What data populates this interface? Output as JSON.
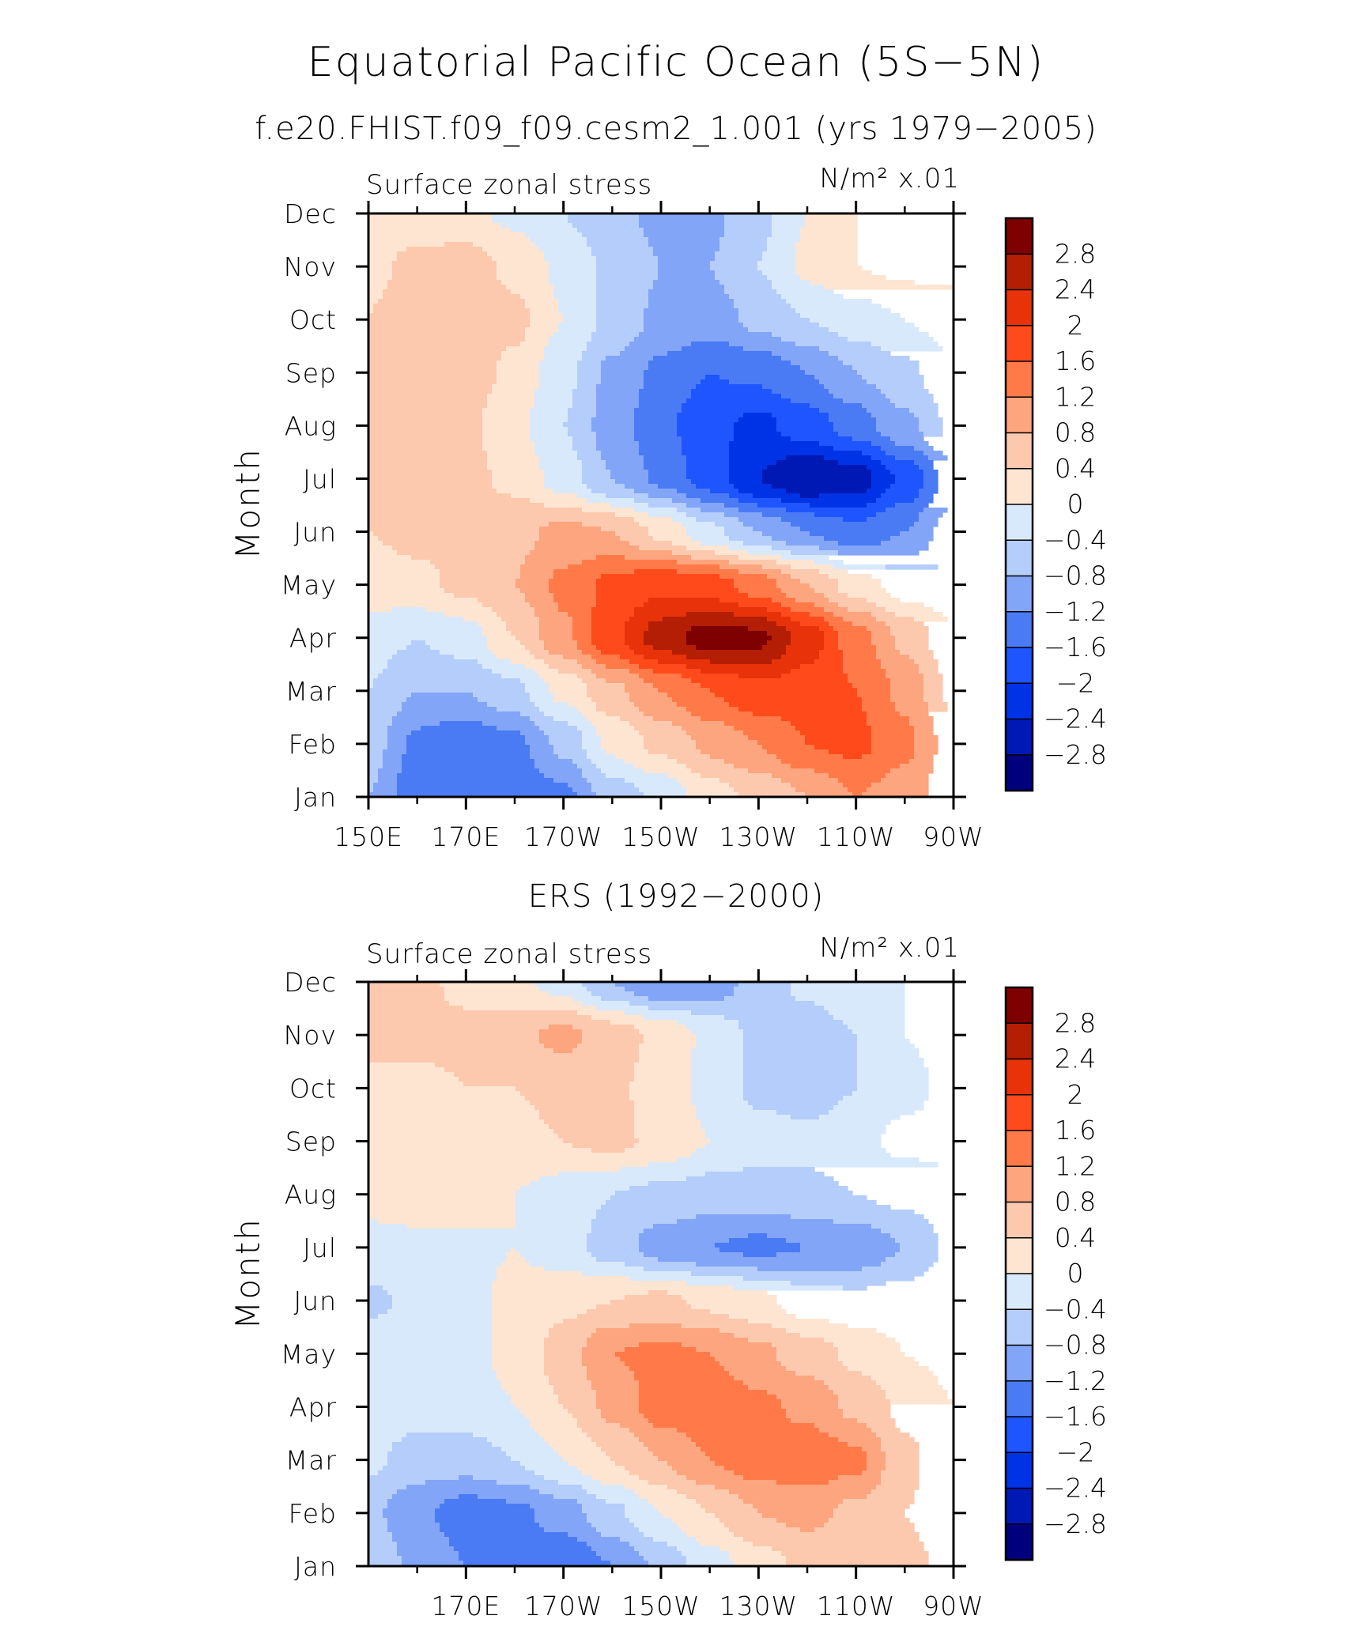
{
  "figure": {
    "title": "Equatorial Pacific Ocean (5S−5N)",
    "colorbar_levels": [
      -2.8,
      -2.4,
      -2,
      -1.6,
      -1.2,
      -0.8,
      -0.4,
      0,
      0.4,
      0.8,
      1.2,
      1.6,
      2,
      2.4,
      2.8
    ],
    "colorbar_labels": [
      "2.8",
      "2.4",
      "2",
      "1.6",
      "1.2",
      "0.8",
      "0.4",
      "0",
      "−0.4",
      "−0.8",
      "−1.2",
      "−1.6",
      "−2",
      "−2.4",
      "−2.8"
    ],
    "colors": [
      "#00007f",
      "#0019b4",
      "#0033e6",
      "#1e55ff",
      "#4a7bf5",
      "#82a5f7",
      "#b4cdfa",
      "#d8e9fc",
      "#fde5d2",
      "#fcc9ae",
      "#fca57e",
      "#ff7a48",
      "#ff4a1b",
      "#e8320a",
      "#b41e05",
      "#7f0000"
    ]
  },
  "chart_data": [
    {
      "type": "heatmap",
      "title": "f.e20.FHIST.f09_f09.cesm2_1.001 (yrs 1979−2005)",
      "left_label": "Surface zonal stress",
      "right_label": "N/m² x.01",
      "ylabel": "Month",
      "xlabel": "",
      "x_tick_labels": [
        "150E",
        "170E",
        "170W",
        "150W",
        "130W",
        "110W",
        "90W"
      ],
      "y_tick_labels": [
        "Jan",
        "Feb",
        "Mar",
        "Apr",
        "May",
        "Jun",
        "Jul",
        "Aug",
        "Sep",
        "Oct",
        "Nov",
        "Dec"
      ],
      "x": [
        150,
        160,
        170,
        180,
        190,
        200,
        210,
        220,
        230,
        240,
        250,
        260,
        270
      ],
      "x_units": "degrees east longitude",
      "y": [
        1,
        2,
        3,
        4,
        5,
        6,
        7,
        8,
        9,
        10,
        11,
        12
      ],
      "values": [
        [
          -0.8,
          -1.5,
          -1.6,
          -1.5,
          -1.3,
          -0.6,
          -0.3,
          0.2,
          0.5,
          0.8,
          1.2,
          1.0,
          0.5
        ],
        [
          -0.6,
          -1.3,
          -1.5,
          -1.3,
          -0.7,
          0.1,
          0.5,
          0.9,
          1.2,
          1.6,
          1.7,
          1.3,
          0.6
        ],
        [
          -0.4,
          -0.8,
          -0.8,
          -0.5,
          0.1,
          0.7,
          1.2,
          1.6,
          1.9,
          1.8,
          1.6,
          1.1,
          0.3
        ],
        [
          -0.2,
          -0.4,
          -0.2,
          0.4,
          1.1,
          1.9,
          2.6,
          3.0,
          2.9,
          2.2,
          1.4,
          0.7,
          0.1
        ],
        [
          0.2,
          0.3,
          0.5,
          0.8,
          1.3,
          1.7,
          1.9,
          1.8,
          1.4,
          0.8,
          0.2,
          -0.2,
          -0.3
        ],
        [
          0.4,
          0.5,
          0.6,
          0.7,
          0.9,
          0.8,
          0.3,
          -0.3,
          -0.8,
          -1.2,
          -1.5,
          -1.2,
          -0.6
        ],
        [
          0.5,
          0.6,
          0.5,
          0.3,
          -0.2,
          -0.8,
          -1.3,
          -1.8,
          -2.4,
          -2.8,
          -2.6,
          -1.9,
          -1.0
        ],
        [
          0.5,
          0.6,
          0.5,
          0.1,
          -0.4,
          -1.0,
          -1.5,
          -1.9,
          -2.1,
          -1.8,
          -1.4,
          -0.9,
          -0.3
        ],
        [
          0.5,
          0.7,
          0.6,
          0.3,
          -0.3,
          -0.9,
          -1.3,
          -1.6,
          -1.5,
          -1.2,
          -0.8,
          -0.5,
          -0.1
        ],
        [
          0.4,
          0.7,
          0.8,
          0.5,
          0.0,
          -0.5,
          -0.9,
          -1.0,
          -0.7,
          -0.4,
          -0.2,
          0.0,
          0.2
        ],
        [
          0.3,
          0.5,
          0.6,
          0.3,
          -0.1,
          -0.5,
          -0.8,
          -0.8,
          -0.4,
          0.1,
          0.4,
          0.5,
          0.5
        ],
        [
          0.2,
          0.2,
          0.1,
          -0.1,
          -0.4,
          -0.7,
          -0.9,
          -0.9,
          -0.5,
          0.0,
          0.4,
          0.5,
          0.5
        ]
      ]
    },
    {
      "type": "heatmap",
      "title": "ERS (1992−2000)",
      "left_label": "Surface zonal stress",
      "right_label": "N/m² x.01",
      "ylabel": "Month",
      "xlabel": "",
      "x_tick_labels": [
        "170E",
        "170W",
        "150W",
        "130W",
        "110W",
        "90W"
      ],
      "y_tick_labels": [
        "Jan",
        "Feb",
        "Mar",
        "Apr",
        "May",
        "Jun",
        "Jul",
        "Aug",
        "Sep",
        "Oct",
        "Nov",
        "Dec"
      ],
      "x": [
        150,
        160,
        170,
        180,
        190,
        200,
        210,
        220,
        230,
        240,
        250,
        260,
        270
      ],
      "x_units": "degrees east longitude",
      "y": [
        1,
        2,
        3,
        4,
        5,
        6,
        7,
        8,
        9,
        10,
        11,
        12
      ],
      "values": [
        [
          -0.5,
          -0.9,
          -1.2,
          -1.5,
          -1.6,
          -1.2,
          -0.7,
          -0.2,
          0.2,
          0.5,
          0.7,
          0.5,
          0.3
        ],
        [
          -0.7,
          -1.1,
          -1.4,
          -1.3,
          -1.0,
          -0.5,
          0.0,
          0.4,
          0.8,
          0.9,
          0.7,
          0.4,
          0.2
        ],
        [
          -0.3,
          -0.6,
          -0.6,
          -0.4,
          0.0,
          0.4,
          0.8,
          1.2,
          1.4,
          1.5,
          1.3,
          0.5,
          0.1
        ],
        [
          -0.1,
          -0.2,
          -0.2,
          0.0,
          0.4,
          0.9,
          1.4,
          1.5,
          1.3,
          1.1,
          0.7,
          0.3,
          0.0
        ],
        [
          -0.1,
          0.0,
          -0.1,
          0.1,
          0.6,
          1.2,
          1.3,
          1.2,
          0.9,
          0.6,
          0.3,
          0.0,
          -0.1
        ],
        [
          -0.5,
          -0.3,
          -0.1,
          0.1,
          0.3,
          0.4,
          0.5,
          0.3,
          0.1,
          -0.2,
          -0.3,
          -0.2,
          -0.1
        ],
        [
          -0.1,
          -0.1,
          -0.1,
          0.0,
          -0.2,
          -0.6,
          -1.0,
          -1.2,
          -1.3,
          -1.2,
          -1.1,
          -0.8,
          -0.3
        ],
        [
          0.1,
          0.2,
          0.2,
          0.0,
          -0.2,
          -0.4,
          -0.5,
          -0.6,
          -0.6,
          -0.5,
          -0.4,
          -0.3,
          -0.1
        ],
        [
          0.3,
          0.4,
          0.4,
          0.3,
          0.4,
          0.5,
          0.3,
          0.0,
          -0.2,
          -0.3,
          -0.1,
          0.1,
          0.1
        ],
        [
          0.4,
          0.3,
          0.4,
          0.4,
          0.5,
          0.5,
          0.2,
          -0.1,
          -0.5,
          -0.6,
          -0.4,
          -0.1,
          0.1
        ],
        [
          0.4,
          0.5,
          0.5,
          0.7,
          0.9,
          0.6,
          0.3,
          -0.1,
          -0.5,
          -0.6,
          -0.4,
          0.0,
          0.1
        ],
        [
          0.5,
          0.5,
          0.3,
          0.1,
          -0.2,
          -0.8,
          -1.2,
          -1.1,
          -0.6,
          -0.3,
          -0.1,
          0.0,
          0.1
        ]
      ]
    }
  ]
}
